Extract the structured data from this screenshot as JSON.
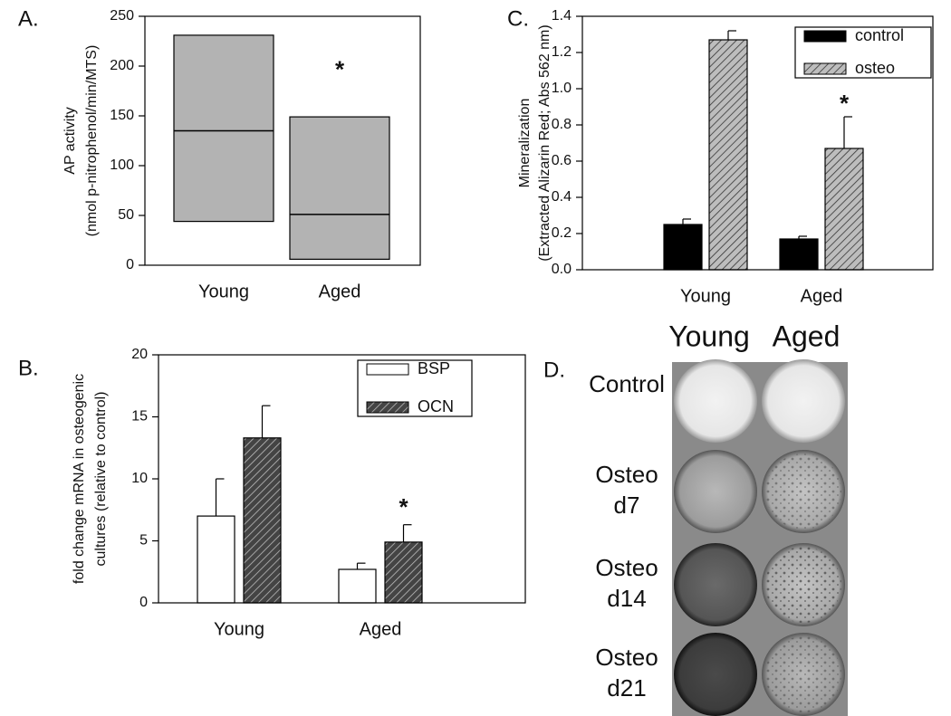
{
  "chart_data": [
    {
      "type": "box",
      "panel_label": "A.",
      "ylabel": [
        "AP activity",
        "(nmol p-nitrophenol/min/MTS)"
      ],
      "categories": [
        "Young",
        "Aged"
      ],
      "q1": [
        44,
        6
      ],
      "median": [
        135,
        51
      ],
      "q3": [
        231,
        149
      ],
      "color": "#b3b3b3",
      "ylim": [
        0,
        250
      ],
      "yticks": [
        0,
        50,
        100,
        150,
        200,
        250
      ],
      "annotations": [
        {
          "text": "*",
          "category": 1,
          "y": 195
        }
      ]
    },
    {
      "type": "bar",
      "panel_label": "B.",
      "ylabel": [
        "fold change mRNA in osteogenic",
        "cultures (relative to control)"
      ],
      "categories": [
        "Young",
        "Aged"
      ],
      "series": [
        {
          "name": "BSP",
          "color": "#ffffff",
          "hatch": false,
          "values": [
            7,
            2.7
          ],
          "errors": [
            3,
            0.5
          ]
        },
        {
          "name": "OCN",
          "color": "#444444",
          "hatch": true,
          "values": [
            13.3,
            4.9
          ],
          "errors": [
            2.6,
            1.4
          ]
        }
      ],
      "ylim": [
        0,
        20
      ],
      "yticks": [
        0,
        5,
        10,
        15,
        20
      ],
      "legend": "upper right",
      "annotations": [
        {
          "text": "*",
          "category": 1,
          "series": 1,
          "y": 7.6
        }
      ]
    },
    {
      "type": "bar",
      "panel_label": "C.",
      "ylabel": [
        "Mineralization",
        "(Extracted Alizarin Red; Abs 562 nm)"
      ],
      "categories": [
        "Young",
        "Aged"
      ],
      "series": [
        {
          "name": "control",
          "color": "#000000",
          "hatch": false,
          "values": [
            0.25,
            0.17
          ],
          "errors": [
            0.03,
            0.015
          ]
        },
        {
          "name": "osteo",
          "color": "#bdbdbd",
          "hatch": true,
          "values": [
            1.27,
            0.67
          ],
          "errors": [
            0.05,
            0.175
          ]
        }
      ],
      "ylim": [
        0,
        1.4
      ],
      "yticks": [
        {
          "value": 0,
          "label": "0.0"
        },
        0.2,
        0.4,
        0.6,
        0.8,
        {
          "value": 1,
          "label": "1.0"
        },
        1.2,
        1.4
      ],
      "legend": "upper right",
      "annotations": [
        {
          "text": "*",
          "category": 1,
          "series": 1,
          "y": 0.91
        }
      ]
    }
  ],
  "panel_d": {
    "label": "D.",
    "columns": [
      "Young",
      "Aged"
    ],
    "rows": [
      [
        "Control"
      ],
      [
        "Osteo",
        "d7"
      ],
      [
        "Osteo",
        "d14"
      ],
      [
        "Osteo",
        "d21"
      ]
    ]
  }
}
